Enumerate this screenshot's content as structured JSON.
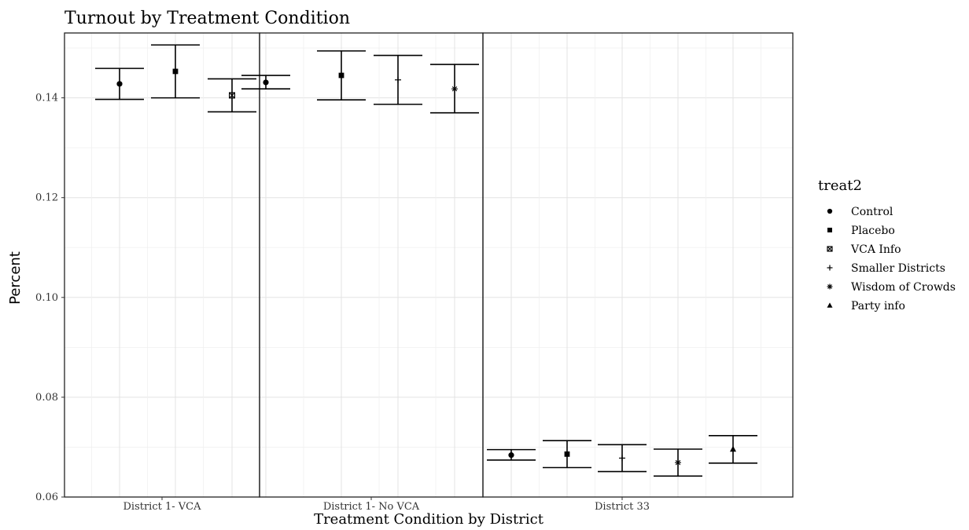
{
  "chart_data": {
    "type": "scatter",
    "title": "Turnout by Treatment Condition",
    "xlabel": "Treatment Condition by District",
    "ylabel": "Percent",
    "ylim": [
      0.06,
      0.153
    ],
    "y_ticks": [
      "0.06",
      "0.08",
      "0.10",
      "0.12",
      "0.14"
    ],
    "y_tick_values": [
      0.06,
      0.08,
      0.1,
      0.12,
      0.14
    ],
    "grid": true,
    "legend_position": "right",
    "legend_title": "treat2",
    "legend": [
      {
        "name": "Control",
        "shape": "circle"
      },
      {
        "name": "Placebo",
        "shape": "square"
      },
      {
        "name": "VCA Info",
        "shape": "boxed-x"
      },
      {
        "name": "Smaller Districts",
        "shape": "plus"
      },
      {
        "name": "Wisdom of Crowds",
        "shape": "asterisk"
      },
      {
        "name": "Party info",
        "shape": "triangle"
      }
    ],
    "panels": [
      {
        "label": "District 1- VCA",
        "points": [
          {
            "treatment": "Control",
            "estimate": 0.1428,
            "lower": 0.1397,
            "upper": 0.1459
          },
          {
            "treatment": "Placebo",
            "estimate": 0.1453,
            "lower": 0.14,
            "upper": 0.1506
          },
          {
            "treatment": "VCA Info",
            "estimate": 0.1405,
            "lower": 0.1372,
            "upper": 0.1438
          }
        ]
      },
      {
        "label": "District 1- No VCA",
        "points": [
          {
            "treatment": "Control",
            "estimate": 0.1431,
            "lower": 0.1418,
            "upper": 0.1445
          },
          {
            "treatment": "Placebo",
            "estimate": 0.1445,
            "lower": 0.1396,
            "upper": 0.1494
          },
          {
            "treatment": "Smaller Districts",
            "estimate": 0.1436,
            "lower": 0.1387,
            "upper": 0.1485
          },
          {
            "treatment": "Wisdom of Crowds",
            "estimate": 0.1418,
            "lower": 0.137,
            "upper": 0.1467
          }
        ]
      },
      {
        "label": "District 33",
        "points": [
          {
            "treatment": "Control",
            "estimate": 0.0684,
            "lower": 0.0674,
            "upper": 0.0695
          },
          {
            "treatment": "Placebo",
            "estimate": 0.0686,
            "lower": 0.0659,
            "upper": 0.0713
          },
          {
            "treatment": "Smaller Districts",
            "estimate": 0.0678,
            "lower": 0.0651,
            "upper": 0.0705
          },
          {
            "treatment": "Wisdom of Crowds",
            "estimate": 0.0669,
            "lower": 0.0642,
            "upper": 0.0696
          },
          {
            "treatment": "Party info",
            "estimate": 0.0696,
            "lower": 0.0668,
            "upper": 0.0723
          }
        ]
      }
    ]
  }
}
